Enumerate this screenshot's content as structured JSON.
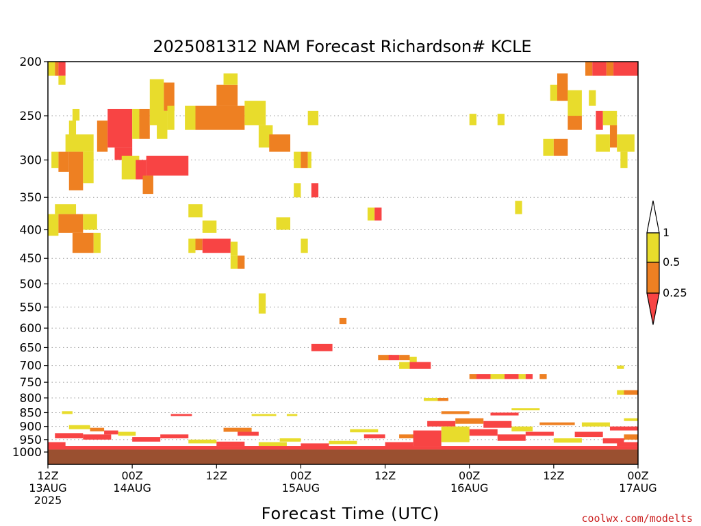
{
  "chart_data": {
    "type": "heatmap",
    "title": "2025081312 NAM Forecast Richardson# KCLE",
    "xlabel": "Forecast Time (UTC)",
    "ylabel": "",
    "credit": "coolwx.com/modelts",
    "y_scale": "log",
    "ylim": [
      1000,
      200
    ],
    "y_ticks": [
      200,
      250,
      300,
      350,
      400,
      450,
      500,
      550,
      600,
      650,
      700,
      750,
      800,
      850,
      900,
      950,
      1000
    ],
    "xlim": [
      0,
      84
    ],
    "x_ticks": [
      {
        "h": 0,
        "line1": "12Z",
        "line2": "13AUG",
        "line3": "2025"
      },
      {
        "h": 12,
        "line1": "00Z",
        "line2": "14AUG",
        "line3": ""
      },
      {
        "h": 24,
        "line1": "12Z",
        "line2": "",
        "line3": ""
      },
      {
        "h": 36,
        "line1": "00Z",
        "line2": "15AUG",
        "line3": ""
      },
      {
        "h": 48,
        "line1": "12Z",
        "line2": "",
        "line3": ""
      },
      {
        "h": 60,
        "line1": "00Z",
        "line2": "16AUG",
        "line3": ""
      },
      {
        "h": 72,
        "line1": "12Z",
        "line2": "",
        "line3": ""
      },
      {
        "h": 84,
        "line1": "00Z",
        "line2": "17AUG",
        "line3": ""
      }
    ],
    "grid": true,
    "legend": {
      "placement": "right",
      "levels": [
        {
          "label": "1",
          "color": "#e8dc2c"
        },
        {
          "label": "0.5",
          "color": "#ee8022"
        },
        {
          "label": "0.25",
          "color": "#f84444"
        }
      ]
    },
    "category_colors": {
      "lt_0.25": "#f84444",
      "0.25_0.5": "#ee8022",
      "0.5_1": "#e8dc2c",
      "ground": "#9a5030"
    },
    "surface_pressure": 990,
    "cells": [
      {
        "h0": 0,
        "h1": 1.0,
        "p0": 200,
        "p1": 212,
        "c": "0.5_1"
      },
      {
        "h0": 1.0,
        "h1": 1.5,
        "p0": 200,
        "p1": 212,
        "c": "0.25_0.5"
      },
      {
        "h0": 1.5,
        "h1": 2.5,
        "p0": 200,
        "p1": 212,
        "c": "lt_0.25"
      },
      {
        "h0": 1.5,
        "h1": 2.5,
        "p0": 212,
        "p1": 220,
        "c": "0.5_1"
      },
      {
        "h0": 3.5,
        "h1": 4.5,
        "p0": 243,
        "p1": 255,
        "c": "0.5_1"
      },
      {
        "h0": 3.0,
        "h1": 4.0,
        "p0": 255,
        "p1": 290,
        "c": "0.5_1"
      },
      {
        "h0": 2.5,
        "h1": 6.5,
        "p0": 270,
        "p1": 290,
        "c": "0.5_1"
      },
      {
        "h0": 1.5,
        "h1": 3.0,
        "p0": 290,
        "p1": 315,
        "c": "0.25_0.5"
      },
      {
        "h0": 3.0,
        "h1": 5.0,
        "p0": 290,
        "p1": 340,
        "c": "0.25_0.5"
      },
      {
        "h0": 5.0,
        "h1": 6.5,
        "p0": 290,
        "p1": 330,
        "c": "0.5_1"
      },
      {
        "h0": 0.5,
        "h1": 1.5,
        "p0": 290,
        "p1": 310,
        "c": "0.5_1"
      },
      {
        "h0": 1.0,
        "h1": 4.0,
        "p0": 360,
        "p1": 375,
        "c": "0.5_1"
      },
      {
        "h0": 0,
        "h1": 1.5,
        "p0": 375,
        "p1": 410,
        "c": "0.5_1"
      },
      {
        "h0": 1.5,
        "h1": 5.0,
        "p0": 375,
        "p1": 405,
        "c": "0.25_0.5"
      },
      {
        "h0": 5.0,
        "h1": 7.0,
        "p0": 375,
        "p1": 400,
        "c": "0.5_1"
      },
      {
        "h0": 3.5,
        "h1": 6.5,
        "p0": 405,
        "p1": 440,
        "c": "0.25_0.5"
      },
      {
        "h0": 6.5,
        "h1": 7.5,
        "p0": 405,
        "p1": 440,
        "c": "0.5_1"
      },
      {
        "h0": 7.0,
        "h1": 8.5,
        "p0": 255,
        "p1": 290,
        "c": "0.25_0.5"
      },
      {
        "h0": 8.5,
        "h1": 12.0,
        "p0": 243,
        "p1": 285,
        "c": "lt_0.25"
      },
      {
        "h0": 9.5,
        "h1": 12.0,
        "p0": 285,
        "p1": 300,
        "c": "lt_0.25"
      },
      {
        "h0": 12.0,
        "h1": 13.0,
        "p0": 243,
        "p1": 275,
        "c": "0.5_1"
      },
      {
        "h0": 13.0,
        "h1": 14.5,
        "p0": 243,
        "p1": 275,
        "c": "0.25_0.5"
      },
      {
        "h0": 14.5,
        "h1": 16.5,
        "p0": 215,
        "p1": 260,
        "c": "0.5_1"
      },
      {
        "h0": 16.5,
        "h1": 18.0,
        "p0": 218,
        "p1": 245,
        "c": "0.25_0.5"
      },
      {
        "h0": 15.5,
        "h1": 17.0,
        "p0": 245,
        "p1": 275,
        "c": "0.5_1"
      },
      {
        "h0": 10.5,
        "h1": 13.0,
        "p0": 295,
        "p1": 325,
        "c": "0.5_1"
      },
      {
        "h0": 12.5,
        "h1": 14.0,
        "p0": 300,
        "p1": 325,
        "c": "lt_0.25"
      },
      {
        "h0": 14.0,
        "h1": 20.0,
        "p0": 295,
        "p1": 320,
        "c": "lt_0.25"
      },
      {
        "h0": 13.5,
        "h1": 15.0,
        "p0": 320,
        "p1": 345,
        "c": "0.25_0.5"
      },
      {
        "h0": 17.0,
        "h1": 18.0,
        "p0": 240,
        "p1": 265,
        "c": "0.5_1"
      },
      {
        "h0": 19.5,
        "h1": 21.0,
        "p0": 240,
        "p1": 265,
        "c": "0.5_1"
      },
      {
        "h0": 21.0,
        "h1": 28.0,
        "p0": 240,
        "p1": 265,
        "c": "0.25_0.5"
      },
      {
        "h0": 24.0,
        "h1": 27.0,
        "p0": 220,
        "p1": 240,
        "c": "0.25_0.5"
      },
      {
        "h0": 25.0,
        "h1": 27.0,
        "p0": 210,
        "p1": 220,
        "c": "0.5_1"
      },
      {
        "h0": 28.0,
        "h1": 31.0,
        "p0": 235,
        "p1": 260,
        "c": "0.5_1"
      },
      {
        "h0": 30.0,
        "h1": 32.0,
        "p0": 260,
        "p1": 285,
        "c": "0.5_1"
      },
      {
        "h0": 31.5,
        "h1": 34.5,
        "p0": 270,
        "p1": 290,
        "c": "0.25_0.5"
      },
      {
        "h0": 20.0,
        "h1": 22.0,
        "p0": 360,
        "p1": 380,
        "c": "0.5_1"
      },
      {
        "h0": 22.0,
        "h1": 24.0,
        "p0": 385,
        "p1": 405,
        "c": "0.5_1"
      },
      {
        "h0": 20.0,
        "h1": 21.0,
        "p0": 415,
        "p1": 440,
        "c": "0.5_1"
      },
      {
        "h0": 21.0,
        "h1": 22.0,
        "p0": 415,
        "p1": 435,
        "c": "0.25_0.5"
      },
      {
        "h0": 22.0,
        "h1": 26.0,
        "p0": 415,
        "p1": 440,
        "c": "lt_0.25"
      },
      {
        "h0": 26.0,
        "h1": 27.0,
        "p0": 420,
        "p1": 445,
        "c": "0.5_1"
      },
      {
        "h0": 26.0,
        "h1": 27.0,
        "p0": 445,
        "p1": 470,
        "c": "0.5_1"
      },
      {
        "h0": 27.0,
        "h1": 28.0,
        "p0": 445,
        "p1": 470,
        "c": "0.25_0.5"
      },
      {
        "h0": 32.5,
        "h1": 34.5,
        "p0": 380,
        "p1": 400,
        "c": "0.5_1"
      },
      {
        "h0": 35.0,
        "h1": 36.0,
        "p0": 290,
        "p1": 310,
        "c": "0.5_1"
      },
      {
        "h0": 36.0,
        "h1": 37.0,
        "p0": 290,
        "p1": 310,
        "c": "0.25_0.5"
      },
      {
        "h0": 37.0,
        "h1": 37.5,
        "p0": 290,
        "p1": 310,
        "c": "0.5_1"
      },
      {
        "h0": 35.0,
        "h1": 36.0,
        "p0": 330,
        "p1": 350,
        "c": "0.5_1"
      },
      {
        "h0": 37.5,
        "h1": 38.5,
        "p0": 330,
        "p1": 350,
        "c": "lt_0.25"
      },
      {
        "h0": 36.0,
        "h1": 37.0,
        "p0": 415,
        "p1": 440,
        "c": "0.5_1"
      },
      {
        "h0": 37.0,
        "h1": 38.5,
        "p0": 245,
        "p1": 260,
        "c": "0.5_1"
      },
      {
        "h0": 45.5,
        "h1": 46.5,
        "p0": 365,
        "p1": 385,
        "c": "0.5_1"
      },
      {
        "h0": 46.5,
        "h1": 47.5,
        "p0": 365,
        "p1": 385,
        "c": "lt_0.25"
      },
      {
        "h0": 30.0,
        "h1": 31.0,
        "p0": 520,
        "p1": 565,
        "c": "0.5_1"
      },
      {
        "h0": 41.5,
        "h1": 42.5,
        "p0": 575,
        "p1": 590,
        "c": "0.25_0.5"
      },
      {
        "h0": 37.5,
        "h1": 40.5,
        "p0": 640,
        "p1": 660,
        "c": "lt_0.25"
      },
      {
        "h0": 47.0,
        "h1": 49.0,
        "p0": 670,
        "p1": 685,
        "c": "0.25_0.5"
      },
      {
        "h0": 48.5,
        "h1": 50.0,
        "p0": 670,
        "p1": 685,
        "c": "lt_0.25"
      },
      {
        "h0": 50.0,
        "h1": 51.5,
        "p0": 670,
        "p1": 685,
        "c": "0.25_0.5"
      },
      {
        "h0": 51.5,
        "h1": 52.5,
        "p0": 675,
        "p1": 690,
        "c": "0.5_1"
      },
      {
        "h0": 50.0,
        "h1": 51.5,
        "p0": 690,
        "p1": 710,
        "c": "0.5_1"
      },
      {
        "h0": 51.5,
        "h1": 54.5,
        "p0": 690,
        "p1": 710,
        "c": "lt_0.25"
      },
      {
        "h0": 60.0,
        "h1": 61.0,
        "p0": 725,
        "p1": 740,
        "c": "0.25_0.5"
      },
      {
        "h0": 61.0,
        "h1": 63.0,
        "p0": 725,
        "p1": 740,
        "c": "lt_0.25"
      },
      {
        "h0": 63.0,
        "h1": 65.0,
        "p0": 725,
        "p1": 740,
        "c": "0.5_1"
      },
      {
        "h0": 65.0,
        "h1": 67.0,
        "p0": 725,
        "p1": 740,
        "c": "lt_0.25"
      },
      {
        "h0": 67.0,
        "h1": 68.0,
        "p0": 725,
        "p1": 740,
        "c": "0.5_1"
      },
      {
        "h0": 68.0,
        "h1": 69.0,
        "p0": 725,
        "p1": 740,
        "c": "lt_0.25"
      },
      {
        "h0": 70.0,
        "h1": 71.0,
        "p0": 725,
        "p1": 740,
        "c": "0.25_0.5"
      },
      {
        "h0": 60.0,
        "h1": 61.0,
        "p0": 248,
        "p1": 260,
        "c": "0.5_1"
      },
      {
        "h0": 64.0,
        "h1": 65.0,
        "p0": 248,
        "p1": 260,
        "c": "0.5_1"
      },
      {
        "h0": 66.5,
        "h1": 67.5,
        "p0": 355,
        "p1": 375,
        "c": "0.5_1"
      },
      {
        "h0": 70.5,
        "h1": 72.0,
        "p0": 275,
        "p1": 295,
        "c": "0.5_1"
      },
      {
        "h0": 72.0,
        "h1": 74.0,
        "p0": 275,
        "p1": 295,
        "c": "0.25_0.5"
      },
      {
        "h0": 71.5,
        "h1": 74.0,
        "p0": 220,
        "p1": 235,
        "c": "0.5_1"
      },
      {
        "h0": 72.5,
        "h1": 74.0,
        "p0": 210,
        "p1": 235,
        "c": "0.25_0.5"
      },
      {
        "h0": 74.0,
        "h1": 76.0,
        "p0": 225,
        "p1": 250,
        "c": "0.5_1"
      },
      {
        "h0": 74.0,
        "h1": 76.0,
        "p0": 250,
        "p1": 265,
        "c": "0.25_0.5"
      },
      {
        "h0": 76.5,
        "h1": 77.5,
        "p0": 200,
        "p1": 212,
        "c": "0.25_0.5"
      },
      {
        "h0": 77.5,
        "h1": 79.5,
        "p0": 200,
        "p1": 212,
        "c": "lt_0.25"
      },
      {
        "h0": 79.5,
        "h1": 80.5,
        "p0": 200,
        "p1": 212,
        "c": "0.25_0.5"
      },
      {
        "h0": 80.5,
        "h1": 84.5,
        "p0": 200,
        "p1": 212,
        "c": "lt_0.25"
      },
      {
        "h0": 77.0,
        "h1": 78.0,
        "p0": 225,
        "p1": 240,
        "c": "0.5_1"
      },
      {
        "h0": 78.0,
        "h1": 79.0,
        "p0": 245,
        "p1": 265,
        "c": "lt_0.25"
      },
      {
        "h0": 79.0,
        "h1": 81.0,
        "p0": 245,
        "p1": 260,
        "c": "0.5_1"
      },
      {
        "h0": 80.0,
        "h1": 81.0,
        "p0": 260,
        "p1": 285,
        "c": "0.25_0.5"
      },
      {
        "h0": 78.0,
        "h1": 80.0,
        "p0": 270,
        "p1": 290,
        "c": "0.5_1"
      },
      {
        "h0": 81.0,
        "h1": 83.5,
        "p0": 270,
        "p1": 290,
        "c": "0.5_1"
      },
      {
        "h0": 81.5,
        "h1": 82.5,
        "p0": 290,
        "p1": 310,
        "c": "0.5_1"
      },
      {
        "h0": 84.0,
        "h1": 84.5,
        "p0": 295,
        "p1": 310,
        "c": "lt_0.25"
      },
      {
        "h0": 84.0,
        "h1": 84.5,
        "p0": 215,
        "p1": 230,
        "c": "0.5_1"
      },
      {
        "h0": 84.0,
        "h1": 84.5,
        "p0": 245,
        "p1": 265,
        "c": "lt_0.25"
      },
      {
        "h0": 81.0,
        "h1": 82.0,
        "p0": 700,
        "p1": 710,
        "c": "0.5_1"
      },
      {
        "h0": 81.0,
        "h1": 82.0,
        "p0": 775,
        "p1": 790,
        "c": "0.5_1"
      },
      {
        "h0": 82.0,
        "h1": 84.5,
        "p0": 775,
        "p1": 790,
        "c": "0.25_0.5"
      },
      {
        "h0": 53.5,
        "h1": 56.0,
        "p0": 800,
        "p1": 810,
        "c": "0.5_1"
      },
      {
        "h0": 55.5,
        "h1": 57.0,
        "p0": 800,
        "p1": 810,
        "c": "0.25_0.5"
      },
      {
        "h0": 2.0,
        "h1": 3.5,
        "p0": 845,
        "p1": 855,
        "c": "0.5_1"
      },
      {
        "h0": 17.5,
        "h1": 20.5,
        "p0": 855,
        "p1": 862,
        "c": "lt_0.25"
      },
      {
        "h0": 29.0,
        "h1": 32.5,
        "p0": 855,
        "p1": 862,
        "c": "0.5_1"
      },
      {
        "h0": 34.0,
        "h1": 35.5,
        "p0": 855,
        "p1": 862,
        "c": "0.5_1"
      },
      {
        "h0": 66.0,
        "h1": 70.0,
        "p0": 835,
        "p1": 842,
        "c": "0.5_1"
      },
      {
        "h0": 56.0,
        "h1": 60.0,
        "p0": 845,
        "p1": 855,
        "c": "0.25_0.5"
      },
      {
        "h0": 63.0,
        "h1": 67.0,
        "p0": 850,
        "p1": 860,
        "c": "lt_0.25"
      },
      {
        "h0": 0,
        "h1": 2.5,
        "p0": 960,
        "p1": 985,
        "c": "lt_0.25"
      },
      {
        "h0": 1.0,
        "h1": 5.0,
        "p0": 925,
        "p1": 945,
        "c": "lt_0.25"
      },
      {
        "h0": 3.0,
        "h1": 6.0,
        "p0": 895,
        "p1": 910,
        "c": "0.5_1"
      },
      {
        "h0": 5.0,
        "h1": 9.0,
        "p0": 930,
        "p1": 950,
        "c": "lt_0.25"
      },
      {
        "h0": 6.0,
        "h1": 8.0,
        "p0": 905,
        "p1": 918,
        "c": "0.25_0.5"
      },
      {
        "h0": 8.0,
        "h1": 10.0,
        "p0": 915,
        "p1": 930,
        "c": "lt_0.25"
      },
      {
        "h0": 10.0,
        "h1": 12.5,
        "p0": 920,
        "p1": 935,
        "c": "0.5_1"
      },
      {
        "h0": 12.0,
        "h1": 16.0,
        "p0": 940,
        "p1": 958,
        "c": "lt_0.25"
      },
      {
        "h0": 16.0,
        "h1": 20.0,
        "p0": 930,
        "p1": 945,
        "c": "lt_0.25"
      },
      {
        "h0": 20.0,
        "h1": 24.0,
        "p0": 950,
        "p1": 965,
        "c": "0.5_1"
      },
      {
        "h0": 24.0,
        "h1": 28.0,
        "p0": 958,
        "p1": 975,
        "c": "lt_0.25"
      },
      {
        "h0": 25.0,
        "h1": 29.0,
        "p0": 905,
        "p1": 920,
        "c": "0.25_0.5"
      },
      {
        "h0": 27.0,
        "h1": 30.0,
        "p0": 920,
        "p1": 935,
        "c": "lt_0.25"
      },
      {
        "h0": 30.0,
        "h1": 34.0,
        "p0": 960,
        "p1": 975,
        "c": "0.5_1"
      },
      {
        "h0": 33.0,
        "h1": 36.0,
        "p0": 945,
        "p1": 958,
        "c": "0.5_1"
      },
      {
        "h0": 36.0,
        "h1": 40.0,
        "p0": 965,
        "p1": 980,
        "c": "lt_0.25"
      },
      {
        "h0": 40.0,
        "h1": 44.0,
        "p0": 955,
        "p1": 968,
        "c": "0.5_1"
      },
      {
        "h0": 43.0,
        "h1": 47.0,
        "p0": 910,
        "p1": 922,
        "c": "0.5_1"
      },
      {
        "h0": 45.0,
        "h1": 48.0,
        "p0": 930,
        "p1": 945,
        "c": "lt_0.25"
      },
      {
        "h0": 48.0,
        "h1": 52.0,
        "p0": 960,
        "p1": 978,
        "c": "lt_0.25"
      },
      {
        "h0": 50.0,
        "h1": 53.0,
        "p0": 930,
        "p1": 945,
        "c": "0.25_0.5"
      },
      {
        "h0": 52.0,
        "h1": 56.0,
        "p0": 915,
        "p1": 975,
        "c": "lt_0.25"
      },
      {
        "h0": 54.0,
        "h1": 58.0,
        "p0": 880,
        "p1": 900,
        "c": "lt_0.25"
      },
      {
        "h0": 56.0,
        "h1": 60.0,
        "p0": 900,
        "p1": 960,
        "c": "0.5_1"
      },
      {
        "h0": 58.0,
        "h1": 62.0,
        "p0": 870,
        "p1": 890,
        "c": "0.25_0.5"
      },
      {
        "h0": 60.0,
        "h1": 64.0,
        "p0": 910,
        "p1": 935,
        "c": "lt_0.25"
      },
      {
        "h0": 62.0,
        "h1": 66.0,
        "p0": 880,
        "p1": 905,
        "c": "lt_0.25"
      },
      {
        "h0": 64.0,
        "h1": 68.0,
        "p0": 930,
        "p1": 955,
        "c": "lt_0.25"
      },
      {
        "h0": 66.0,
        "h1": 69.0,
        "p0": 900,
        "p1": 918,
        "c": "0.5_1"
      },
      {
        "h0": 68.0,
        "h1": 72.0,
        "p0": 920,
        "p1": 935,
        "c": "lt_0.25"
      },
      {
        "h0": 70.0,
        "h1": 75.0,
        "p0": 885,
        "p1": 895,
        "c": "0.25_0.5"
      },
      {
        "h0": 72.0,
        "h1": 76.0,
        "p0": 945,
        "p1": 962,
        "c": "0.5_1"
      },
      {
        "h0": 75.0,
        "h1": 79.0,
        "p0": 920,
        "p1": 940,
        "c": "lt_0.25"
      },
      {
        "h0": 76.0,
        "h1": 80.0,
        "p0": 885,
        "p1": 900,
        "c": "0.5_1"
      },
      {
        "h0": 79.0,
        "h1": 82.0,
        "p0": 945,
        "p1": 965,
        "c": "lt_0.25"
      },
      {
        "h0": 80.0,
        "h1": 84.5,
        "p0": 900,
        "p1": 915,
        "c": "lt_0.25"
      },
      {
        "h0": 82.0,
        "h1": 84.5,
        "p0": 930,
        "p1": 950,
        "c": "0.25_0.5"
      },
      {
        "h0": 82.0,
        "h1": 84.5,
        "p0": 870,
        "p1": 880,
        "c": "0.5_1"
      },
      {
        "h0": 81.0,
        "h1": 84.5,
        "p0": 960,
        "p1": 975,
        "c": "lt_0.25"
      },
      {
        "h0": 0,
        "h1": 84.5,
        "p0": 975,
        "p1": 990,
        "c": "lt_0.25"
      }
    ]
  }
}
